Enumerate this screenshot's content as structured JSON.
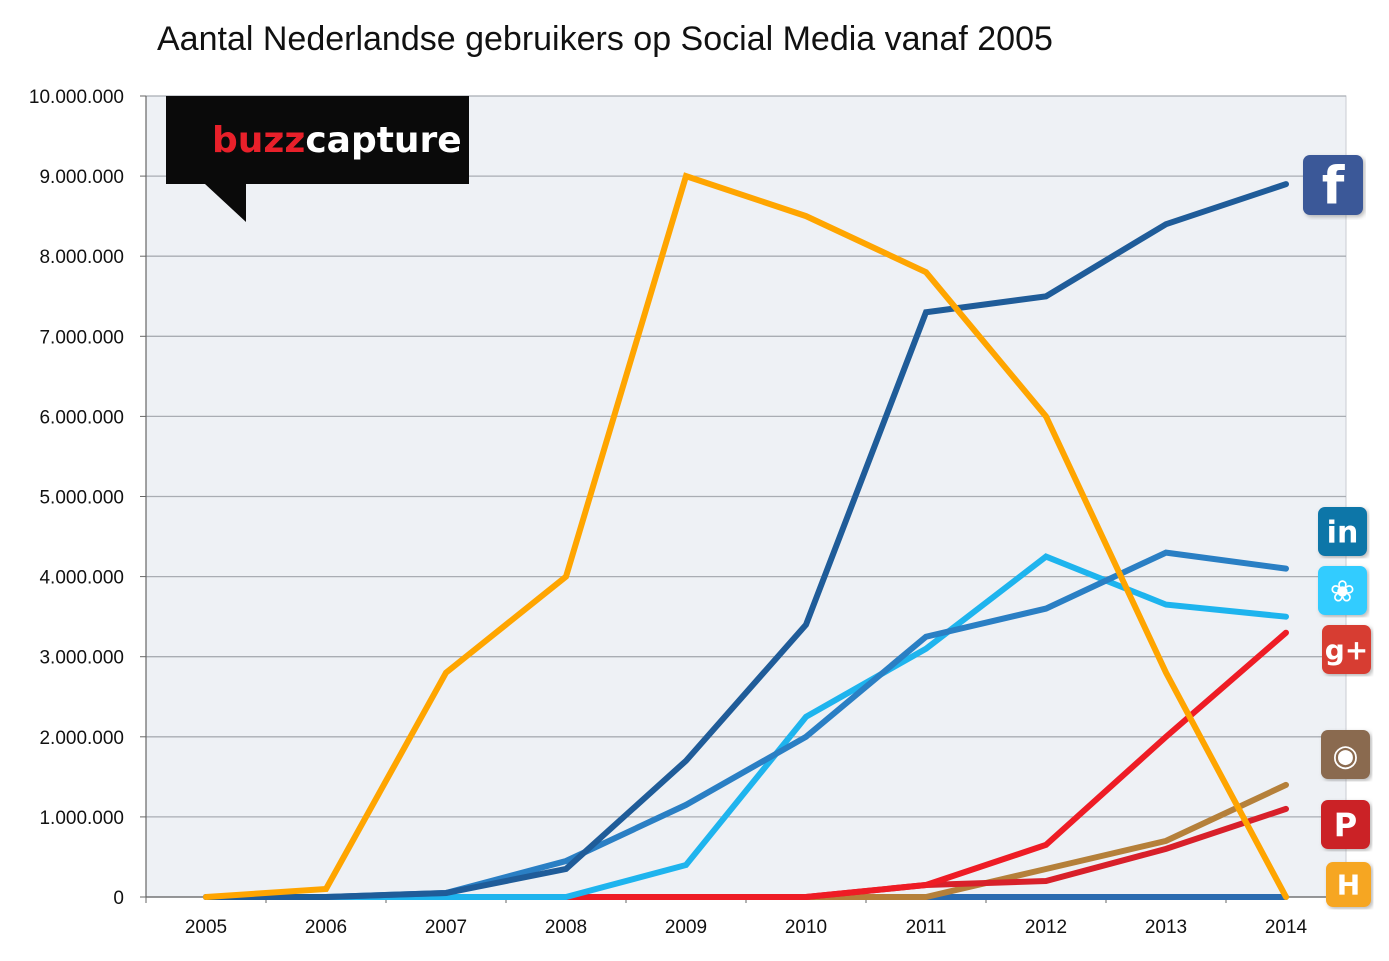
{
  "chart_data": {
    "type": "line",
    "title": "Aantal Nederlandse gebruikers op Social Media vanaf 2005",
    "xlabel": "",
    "ylabel": "",
    "x": [
      "2005",
      "2006",
      "2007",
      "2008",
      "2009",
      "2010",
      "2011",
      "2012",
      "2013",
      "2014"
    ],
    "y_ticks": [
      "0",
      "1.000.000",
      "2.000.000",
      "3.000.000",
      "4.000.000",
      "5.000.000",
      "6.000.000",
      "7.000.000",
      "8.000.000",
      "9.000.000",
      "10.000.000"
    ],
    "ylim": [
      0,
      10000000
    ],
    "grid": true,
    "series": [
      {
        "color": "#FFA500",
        "values": [
          0,
          100000,
          2800000,
          4000000,
          9000000,
          8500000,
          7800000,
          6000000,
          2800000,
          0
        ]
      },
      {
        "color": "#1F5C99",
        "values": [
          0,
          0,
          50000,
          350000,
          1700000,
          3400000,
          7300000,
          7500000,
          8400000,
          8900000
        ]
      },
      {
        "color": "#2A7FC4",
        "values": [
          0,
          0,
          50000,
          450000,
          1150000,
          2000000,
          3250000,
          3600000,
          4300000,
          4100000
        ]
      },
      {
        "color": "#1EB4EE",
        "values": [
          0,
          0,
          0,
          0,
          400000,
          2250000,
          3100000,
          4250000,
          3650000,
          3500000
        ]
      },
      {
        "color": "#EE1C25",
        "values": [
          0,
          0,
          0,
          0,
          0,
          0,
          150000,
          650000,
          2000000,
          3300000
        ]
      },
      {
        "color": "#B5803A",
        "values": [
          0,
          0,
          0,
          0,
          0,
          0,
          0,
          350000,
          700000,
          1400000
        ]
      },
      {
        "color": "#D8202A",
        "values": [
          0,
          0,
          0,
          0,
          0,
          0,
          150000,
          200000,
          600000,
          1100000
        ]
      },
      {
        "color": "#2A6BB0",
        "values": [
          0,
          0,
          0,
          0,
          0,
          0,
          0,
          0,
          0,
          0
        ]
      }
    ]
  },
  "branding": {
    "logo_part1": "buzz",
    "logo_part2": "capture",
    "logo_color_part1": "#E8202A",
    "logo_color_part2": "#FFFFFF",
    "logo_bg": "#0A0A0A"
  },
  "icons": [
    {
      "name": "facebook-icon",
      "glyph": "f",
      "color": "#3B5998"
    },
    {
      "name": "linkedin-icon",
      "glyph": "in",
      "color": "#0E76A8"
    },
    {
      "name": "twitter-icon",
      "glyph": "❀",
      "color": "#33CCFF"
    },
    {
      "name": "google-plus-icon",
      "glyph": "g+",
      "color": "#D73D32"
    },
    {
      "name": "instagram-icon",
      "glyph": "◉",
      "color": "#8A6A4F"
    },
    {
      "name": "pinterest-icon",
      "glyph": "P",
      "color": "#CB2027"
    },
    {
      "name": "hyves-icon",
      "glyph": "H",
      "color": "#F6A623"
    }
  ]
}
